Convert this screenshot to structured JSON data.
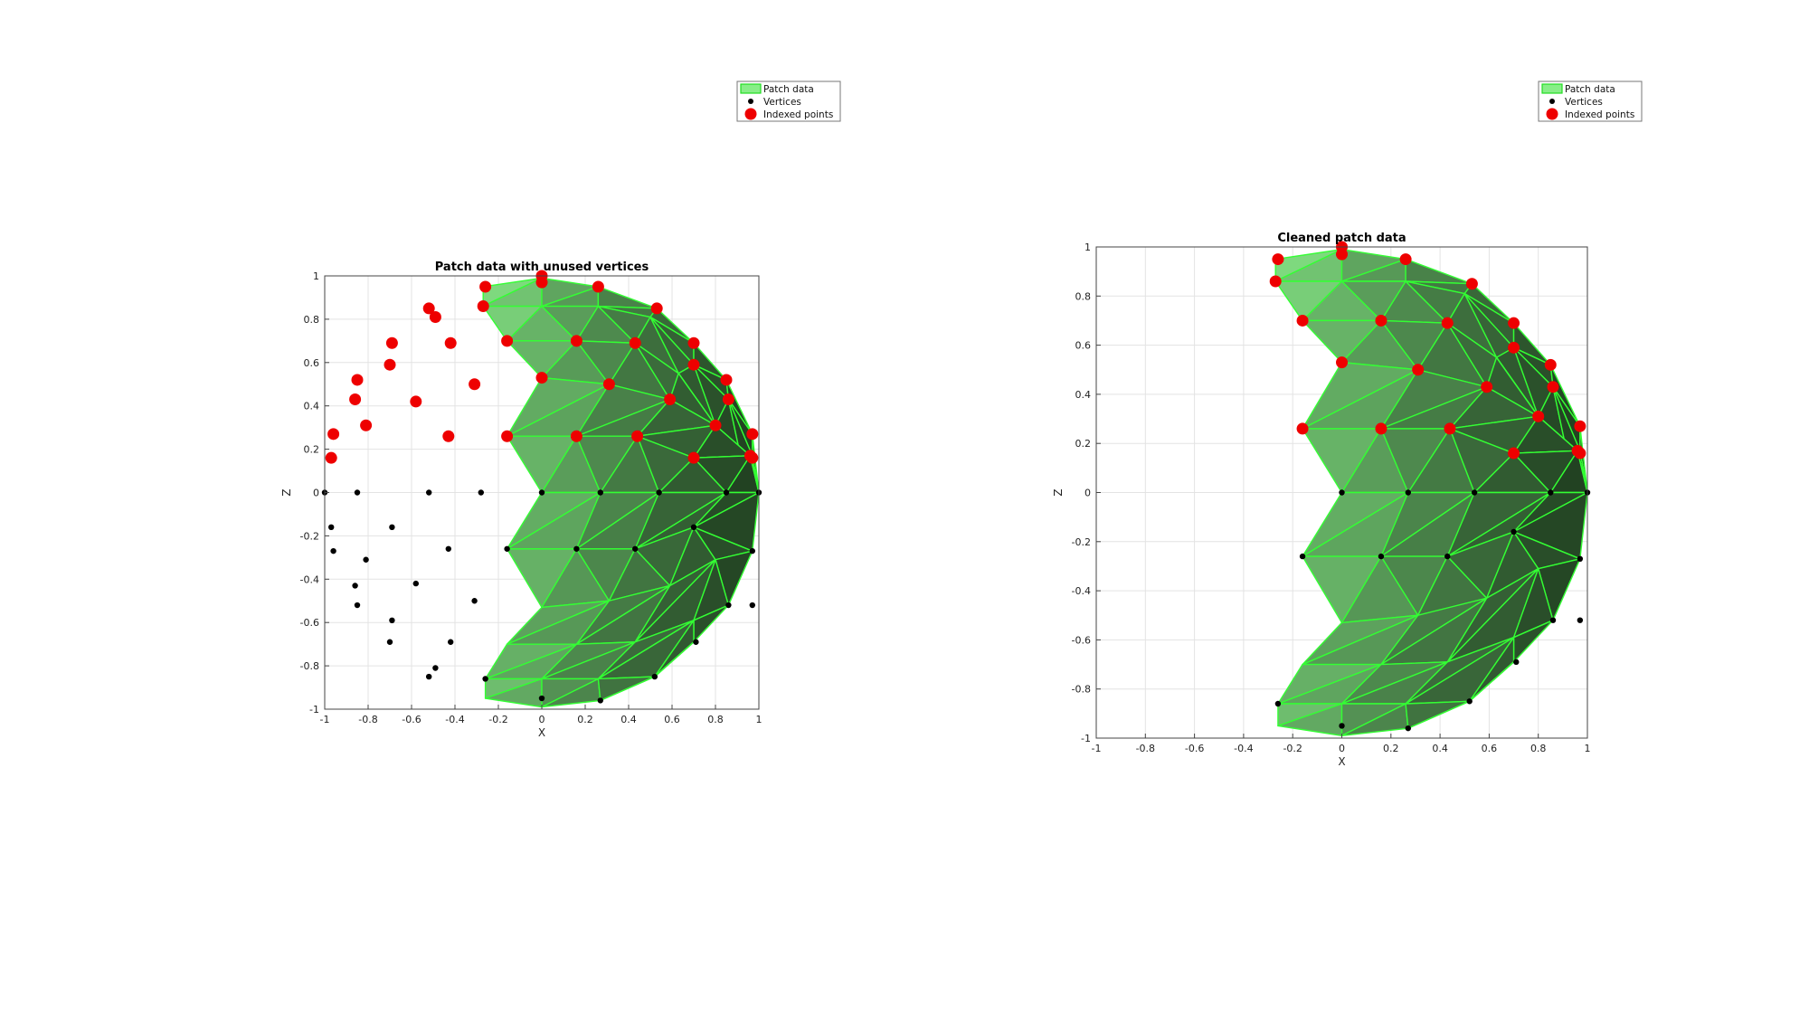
{
  "chart_data": [
    {
      "type": "scatter",
      "title": "Patch data with unused vertices",
      "xlabel": "X",
      "ylabel": "Z",
      "xlim": [
        -1,
        1
      ],
      "ylim": [
        -1,
        1
      ],
      "xticks": [
        "-1",
        "-0.8",
        "-0.6",
        "-0.4",
        "-0.2",
        "0",
        "0.2",
        "0.4",
        "0.6",
        "0.8",
        "1"
      ],
      "yticks": [
        "-1",
        "-0.8",
        "-0.6",
        "-0.4",
        "-0.2",
        "0",
        "0.2",
        "0.4",
        "0.6",
        "0.8",
        "1"
      ],
      "grid": true,
      "legend_position": "top-right",
      "legend": [
        "Patch data",
        "Vertices",
        "Indexed points"
      ],
      "series": [
        {
          "name": "Vertices",
          "x": [
            0,
            0.27,
            0.54,
            0.85,
            1,
            -0.16,
            0.16,
            0.43,
            0.7,
            0.86,
            0.97,
            -0.26,
            0,
            0.27,
            0.52,
            0.71,
            0.97,
            -0.28,
            -0.52,
            -0.85,
            -1,
            -0.97,
            -0.96,
            -0.81,
            -0.69,
            -0.43,
            -0.86,
            -0.85,
            -0.58,
            -0.31,
            -0.69,
            -0.7,
            -0.42,
            -0.49,
            -0.52
          ],
          "y": [
            0,
            0,
            0,
            0,
            0,
            -0.26,
            -0.26,
            -0.26,
            -0.16,
            -0.52,
            -0.27,
            -0.86,
            -0.95,
            -0.96,
            -0.85,
            -0.69,
            -0.52,
            0,
            0,
            0,
            0,
            -0.16,
            -0.27,
            -0.31,
            -0.16,
            -0.26,
            -0.43,
            -0.52,
            -0.42,
            -0.5,
            -0.59,
            -0.69,
            -0.69,
            -0.81,
            -0.85
          ]
        },
        {
          "name": "Indexed points",
          "x": [
            -0.26,
            0,
            0.26,
            0.53,
            0.7,
            0.85,
            0.97,
            -0.16,
            0.16,
            0.43,
            0.7,
            0.86,
            0.97,
            0,
            0.31,
            0.59,
            0.8,
            0.96,
            -0.16,
            0.16,
            0.44,
            0.7,
            -0.27,
            0,
            -0.96,
            -0.97,
            -0.85,
            -0.86,
            -0.81,
            -0.69,
            -0.7,
            -0.58,
            -0.43,
            -0.31,
            -0.52,
            -0.49,
            -0.42
          ],
          "y": [
            0.95,
            0.97,
            0.95,
            0.85,
            0.69,
            0.52,
            0.27,
            0.7,
            0.7,
            0.69,
            0.59,
            0.43,
            0.16,
            0.53,
            0.5,
            0.43,
            0.31,
            0.17,
            0.26,
            0.26,
            0.26,
            0.16,
            0.86,
            1,
            0.27,
            0.16,
            0.52,
            0.43,
            0.31,
            0.69,
            0.59,
            0.42,
            0.26,
            0.5,
            0.85,
            0.81,
            0.69
          ]
        }
      ]
    },
    {
      "type": "scatter",
      "title": "Cleaned patch data",
      "xlabel": "X",
      "ylabel": "Z",
      "xlim": [
        -1,
        1
      ],
      "ylim": [
        -1,
        1
      ],
      "xticks": [
        "-1",
        "-0.8",
        "-0.6",
        "-0.4",
        "-0.2",
        "0",
        "0.2",
        "0.4",
        "0.6",
        "0.8",
        "1"
      ],
      "yticks": [
        "-1",
        "-0.8",
        "-0.6",
        "-0.4",
        "-0.2",
        "0",
        "0.2",
        "0.4",
        "0.6",
        "0.8",
        "1"
      ],
      "grid": true,
      "legend_position": "top-right",
      "legend": [
        "Patch data",
        "Vertices",
        "Indexed points"
      ],
      "series": [
        {
          "name": "Vertices",
          "x": [
            0,
            0.27,
            0.54,
            0.85,
            1,
            -0.16,
            0.16,
            0.43,
            0.7,
            0.86,
            0.97,
            -0.26,
            0,
            0.27,
            0.52,
            0.71,
            0.97
          ],
          "y": [
            0,
            0,
            0,
            0,
            0,
            -0.26,
            -0.26,
            -0.26,
            -0.16,
            -0.52,
            -0.27,
            -0.86,
            -0.95,
            -0.96,
            -0.85,
            -0.69,
            -0.52
          ]
        },
        {
          "name": "Indexed points",
          "x": [
            -0.26,
            0,
            0.26,
            0.53,
            0.7,
            0.85,
            0.97,
            -0.16,
            0.16,
            0.43,
            0.7,
            0.86,
            0.97,
            0,
            0.31,
            0.59,
            0.8,
            0.96,
            -0.16,
            0.16,
            0.44,
            0.7,
            -0.27,
            0
          ],
          "y": [
            0.95,
            0.97,
            0.95,
            0.85,
            0.69,
            0.52,
            0.27,
            0.7,
            0.7,
            0.69,
            0.59,
            0.43,
            0.16,
            0.53,
            0.5,
            0.43,
            0.31,
            0.17,
            0.26,
            0.26,
            0.26,
            0.16,
            0.86,
            1
          ]
        }
      ]
    }
  ]
}
